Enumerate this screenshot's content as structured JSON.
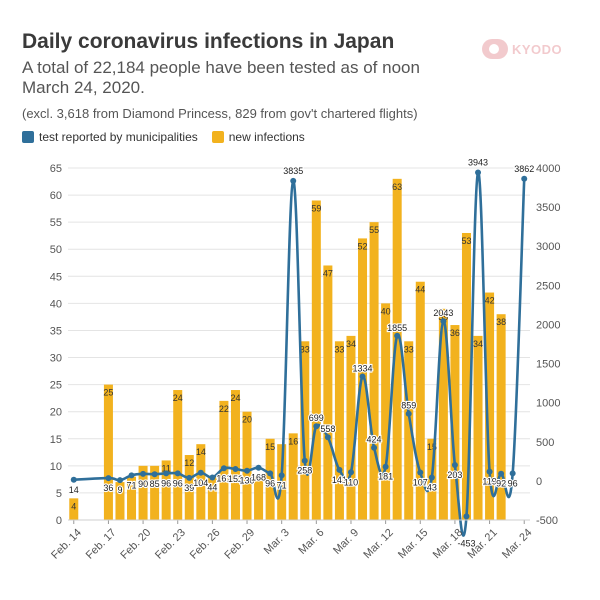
{
  "title": "Daily coronavirus infections in Japan",
  "subtitle": "A total of 22,184 people have been tested as of noon March 24, 2020.",
  "note": "(excl. 3,618 from Diamond Princess, 829 from gov't chartered flights)",
  "logo_text": "KYODO",
  "colors": {
    "tests": "#2f6f9a",
    "infections": "#f2b21e"
  },
  "chart_data": {
    "type": "bar",
    "x": [
      "Feb. 14",
      "Feb. 15",
      "Feb. 16",
      "Feb. 17",
      "Feb. 18",
      "Feb. 19",
      "Feb. 20",
      "Feb. 21",
      "Feb. 22",
      "Feb. 23",
      "Feb. 24",
      "Feb. 25",
      "Feb. 26",
      "Feb. 27",
      "Feb. 28",
      "Feb. 29",
      "Mar. 1",
      "Mar. 2",
      "Mar. 3",
      "Mar. 4",
      "Mar. 5",
      "Mar. 6",
      "Mar. 7",
      "Mar. 8",
      "Mar. 9",
      "Mar. 10",
      "Mar. 11",
      "Mar. 12",
      "Mar. 13",
      "Mar. 14",
      "Mar. 15",
      "Mar. 16",
      "Mar. 17",
      "Mar. 18",
      "Mar. 19",
      "Mar. 20",
      "Mar. 21",
      "Mar. 22",
      "Mar. 23",
      "Mar. 24"
    ],
    "x_ticks": [
      "Feb. 14",
      "Feb. 17",
      "Feb. 20",
      "Feb. 23",
      "Feb. 26",
      "Feb. 29",
      "Mar. 3",
      "Mar. 6",
      "Mar. 9",
      "Mar. 12",
      "Mar. 15",
      "Mar. 18",
      "Mar. 21",
      "Mar. 24"
    ],
    "series": [
      {
        "name": "new infections",
        "axis": "left",
        "values": [
          4,
          null,
          null,
          25,
          7,
          8,
          10,
          10,
          11,
          24,
          12,
          14,
          8,
          22,
          24,
          20,
          8,
          15,
          14,
          16,
          33,
          59,
          47,
          33,
          34,
          52,
          55,
          40,
          63,
          33,
          44,
          15,
          39,
          36,
          53,
          34,
          42,
          38,
          null,
          null
        ]
      },
      {
        "name": "test reported by municipalities",
        "axis": "right",
        "values": [
          14,
          null,
          null,
          36,
          9,
          71,
          90,
          85,
          96,
          96,
          39,
          104,
          44,
          161,
          152,
          130,
          168,
          96,
          71,
          3835,
          258,
          699,
          558,
          141,
          110,
          1334,
          424,
          181,
          1855,
          859,
          107,
          43,
          2043,
          203,
          -453,
          3943,
          119,
          92,
          96,
          3862
        ]
      }
    ],
    "bar_labels": [
      4,
      null,
      null,
      25,
      null,
      null,
      null,
      null,
      11,
      24,
      12,
      14,
      null,
      22,
      24,
      20,
      null,
      15,
      null,
      16,
      33,
      59,
      47,
      33,
      34,
      52,
      55,
      40,
      63,
      33,
      44,
      15,
      39,
      36,
      53,
      34,
      42,
      38,
      null,
      null
    ],
    "line_labels": [
      "14",
      null,
      null,
      "36",
      "9",
      "71",
      "90",
      "85",
      "96",
      "96",
      "39",
      "104",
      "44",
      "161",
      "152",
      "130",
      "168",
      "96",
      "71",
      "3835",
      "258",
      "699",
      "558",
      "141",
      "110",
      "1334",
      "424",
      "181",
      "1855",
      "859",
      "107",
      "43",
      "2043",
      "203",
      "-453",
      "3943",
      "119",
      "92",
      "96",
      "3862"
    ],
    "left_axis": {
      "ticks": [
        0,
        5,
        10,
        15,
        20,
        25,
        30,
        35,
        40,
        45,
        50,
        55,
        60,
        65
      ],
      "range": [
        0,
        65
      ]
    },
    "right_axis": {
      "ticks": [
        -500,
        0,
        500,
        1000,
        1500,
        2000,
        2500,
        3000,
        3500,
        4000
      ],
      "range": [
        -500,
        4000
      ]
    },
    "legend": [
      "test reported by municipalities",
      "new infections"
    ],
    "legend_position": "top-left",
    "grid": true
  }
}
